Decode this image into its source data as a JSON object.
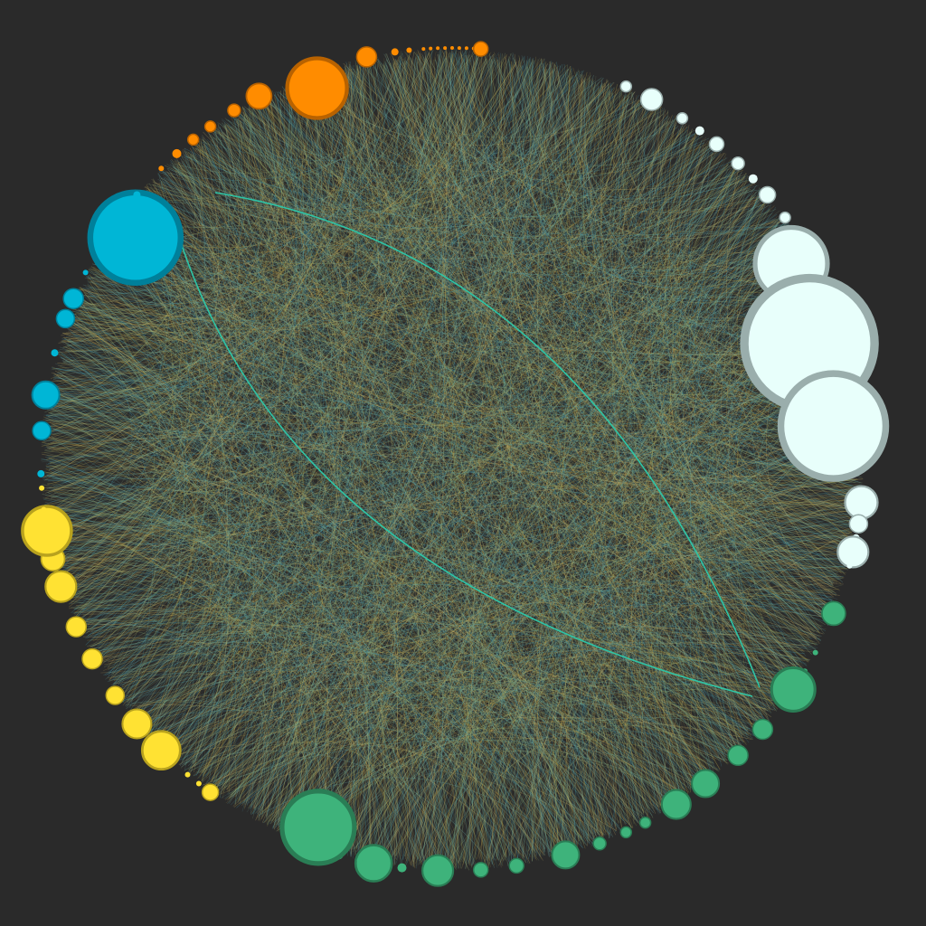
{
  "diagram": {
    "type": "circular-network",
    "background": "#2a2a2a",
    "highlight_edge_color": "#2ec4a6",
    "groups": [
      {
        "name": "white",
        "fill": "#e8fffb",
        "stroke": "#9aaeac",
        "arc_deg": [
          -90,
          10
        ]
      },
      {
        "name": "green",
        "fill": "#3eb37b",
        "stroke": "#2a7d55",
        "arc_deg": [
          20,
          125
        ]
      },
      {
        "name": "yellow",
        "fill": "#ffe233",
        "stroke": "#b8a21e",
        "arc_deg": [
          130,
          188
        ]
      },
      {
        "name": "cyan",
        "fill": "#00b6d6",
        "stroke": "#00809a",
        "arc_deg": [
          193,
          233
        ]
      },
      {
        "name": "orange",
        "fill": "#ff8c00",
        "stroke": "#b86200",
        "arc_deg": [
          238,
          268
        ]
      }
    ],
    "edge_colors": [
      "#b8a24a",
      "#6aa8a0",
      "#4a9fb0",
      "#c9b36a",
      "#8fb07a"
    ]
  }
}
